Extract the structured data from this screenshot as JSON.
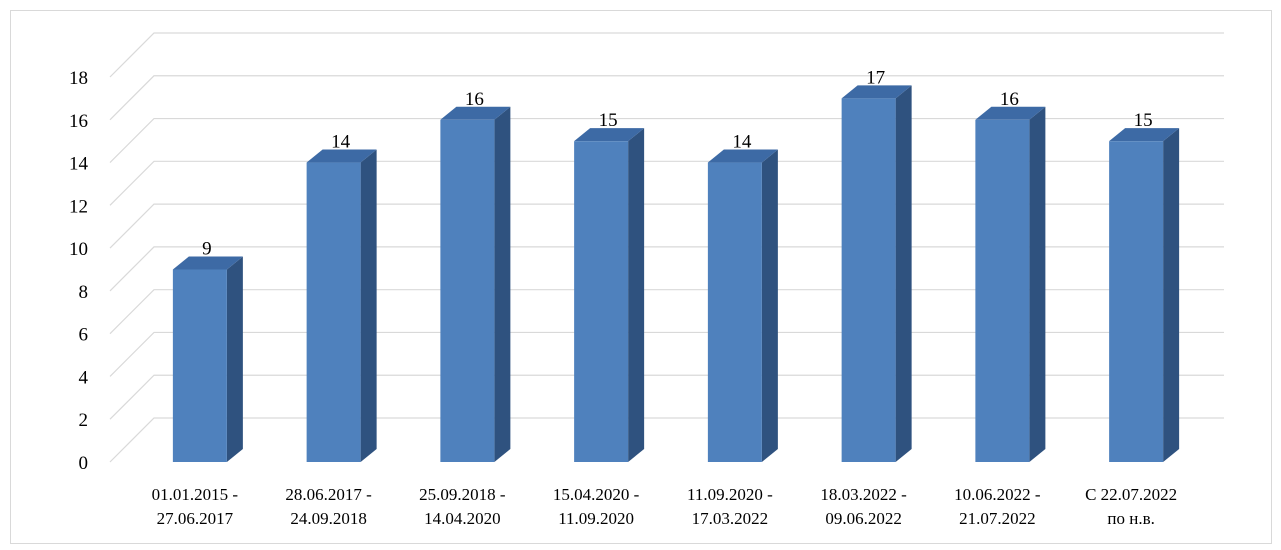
{
  "chart_data": {
    "type": "bar",
    "style": "3d-column",
    "title": "",
    "xlabel": "",
    "ylabel": "",
    "ylim": [
      0,
      18
    ],
    "y_ticks": [
      "0",
      "2",
      "4",
      "6",
      "8",
      "10",
      "12",
      "14",
      "16",
      "18"
    ],
    "grid": true,
    "legend": "none",
    "categories": [
      [
        "01.01.2015 -",
        "27.06.2017"
      ],
      [
        "28.06.2017 -",
        "24.09.2018"
      ],
      [
        "25.09.2018 -",
        "14.04.2020"
      ],
      [
        "15.04.2020 -",
        "11.09.2020"
      ],
      [
        "11.09.2020 -",
        "17.03.2022"
      ],
      [
        "18.03.2022 -",
        "09.06.2022"
      ],
      [
        "10.06.2022 -",
        "21.07.2022"
      ],
      [
        "С 22.07.2022",
        "по н.в."
      ]
    ],
    "values": [
      9,
      14,
      16,
      15,
      14,
      17,
      16,
      15
    ],
    "colors": {
      "bar_front": "#4f81bd",
      "bar_side": "#2f527f",
      "bar_top": "#3d6aa5",
      "grid": "#d9d9d9"
    }
  }
}
